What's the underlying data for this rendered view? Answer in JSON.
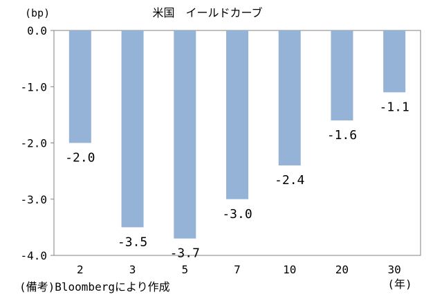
{
  "chart_data": {
    "type": "bar",
    "title": "米国　イールドカーブ",
    "ylabel": "(bp)",
    "xlabel": "",
    "x_unit_label": "(年)",
    "categories": [
      "2",
      "3",
      "5",
      "7",
      "10",
      "20",
      "30"
    ],
    "values": [
      -2.0,
      -3.5,
      -3.7,
      -3.0,
      -2.4,
      -1.6,
      -1.1
    ],
    "data_labels": [
      "-2.0",
      "-3.5",
      "-3.7",
      "-3.0",
      "-2.4",
      "-1.6",
      "-1.1"
    ],
    "y_ticks": [
      "0.0",
      "-1.0",
      "-2.0",
      "-3.0",
      "-4.0"
    ],
    "y_tick_values": [
      0,
      -1,
      -2,
      -3,
      -4
    ],
    "ylim": [
      -4,
      0
    ],
    "grid": false,
    "legend": "none",
    "bar_color": "#95b3d7"
  },
  "source_note": "(備考)Bloombergにより作成"
}
